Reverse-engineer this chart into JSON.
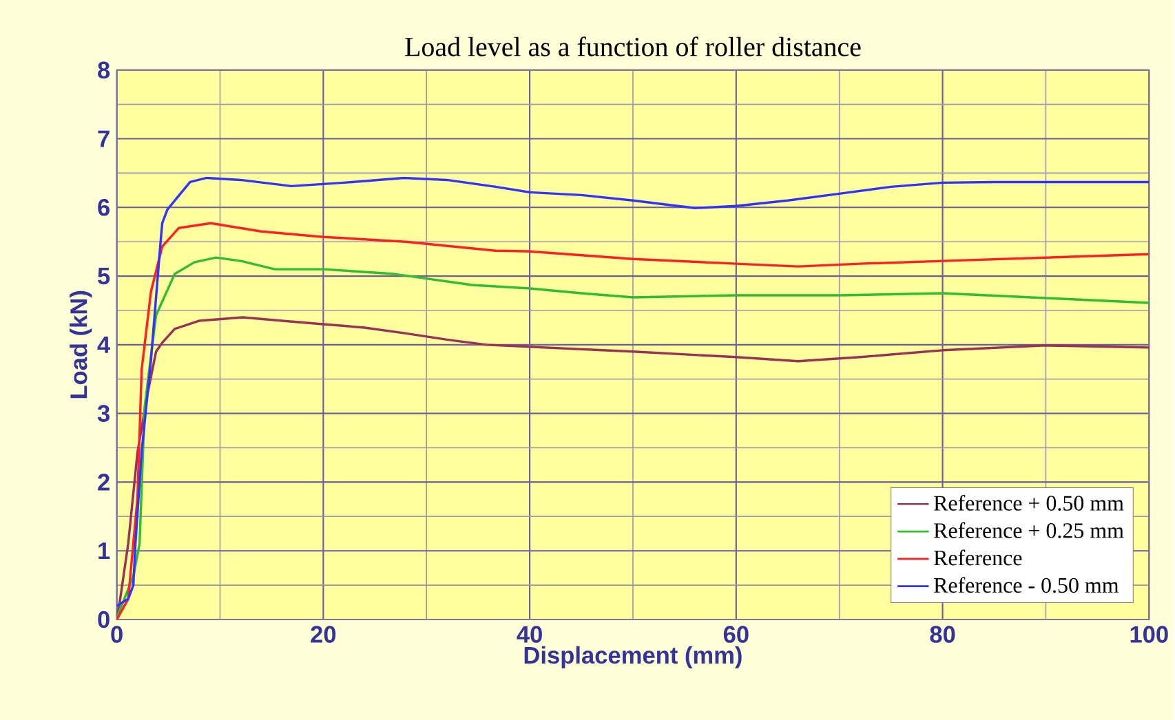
{
  "chart_data": {
    "type": "line",
    "title": "Load level as a function of roller distance",
    "xlabel": "Displacement (mm)",
    "ylabel": "Load (kN)",
    "xlim": [
      0,
      100
    ],
    "ylim": [
      0,
      8
    ],
    "xticks": [
      0,
      20,
      40,
      60,
      80,
      100
    ],
    "yticks": [
      0,
      1,
      2,
      3,
      4,
      5,
      6,
      7,
      8
    ],
    "grid": true,
    "legend": "bottom right",
    "marker": "none",
    "line_style": "solid",
    "series": [
      {
        "name": "Reference + 0.50 mm",
        "color": "#993355",
        "x": [
          0,
          0.2,
          1.1,
          2,
          2.9,
          3.8,
          4.4,
          5.6,
          8,
          12.2,
          16,
          20,
          24,
          27.8,
          32.2,
          35.8,
          40,
          50,
          60,
          66,
          72,
          80,
          90,
          100
        ],
        "values": [
          0.05,
          0.17,
          1.1,
          2.43,
          3.23,
          3.9,
          4.03,
          4.23,
          4.35,
          4.4,
          4.35,
          4.3,
          4.25,
          4.17,
          4.07,
          4.0,
          3.97,
          3.9,
          3.82,
          3.76,
          3.82,
          3.92,
          3.99,
          3.96
        ]
      },
      {
        "name": "Reference + 0.25 mm",
        "color": "#33bb33",
        "x": [
          0,
          1.6,
          2.2,
          2.7,
          3.8,
          4.4,
          5.6,
          7.5,
          9.6,
          12,
          15.3,
          20,
          26.9,
          34.4,
          40,
          45,
          50,
          60,
          70,
          80,
          90,
          100
        ],
        "values": [
          0.03,
          0.63,
          1.1,
          3.1,
          4.43,
          4.63,
          5.03,
          5.2,
          5.27,
          5.22,
          5.1,
          5.1,
          5.03,
          4.87,
          4.82,
          4.75,
          4.69,
          4.72,
          4.72,
          4.75,
          4.68,
          4.61
        ]
      },
      {
        "name": "Reference",
        "color": "#ff2222",
        "x": [
          0,
          1.1,
          2,
          2.4,
          3.3,
          4.4,
          6,
          9.1,
          14,
          20,
          28,
          36.7,
          40,
          50,
          60,
          66,
          72,
          80,
          90,
          100
        ],
        "values": [
          0,
          0.3,
          1.77,
          3.63,
          4.77,
          5.43,
          5.7,
          5.77,
          5.65,
          5.57,
          5.5,
          5.37,
          5.36,
          5.25,
          5.18,
          5.14,
          5.18,
          5.22,
          5.27,
          5.32
        ]
      },
      {
        "name": "Reference - 0.50 mm",
        "color": "#3333ff",
        "x": [
          0,
          1.1,
          1.6,
          1.8,
          2.4,
          3.3,
          4.2,
          4.4,
          4.9,
          7.1,
          8.7,
          12,
          16.9,
          22,
          27.8,
          32,
          36.7,
          40,
          45,
          50,
          56,
          60,
          65,
          70,
          75,
          80,
          85,
          90,
          95,
          100
        ],
        "values": [
          0.2,
          0.3,
          0.5,
          1.1,
          2.43,
          3.77,
          5.43,
          5.77,
          5.97,
          6.37,
          6.43,
          6.4,
          6.31,
          6.36,
          6.43,
          6.4,
          6.3,
          6.22,
          6.18,
          6.1,
          5.99,
          6.02,
          6.1,
          6.2,
          6.3,
          6.36,
          6.37,
          6.37,
          6.37,
          6.37
        ]
      }
    ]
  }
}
